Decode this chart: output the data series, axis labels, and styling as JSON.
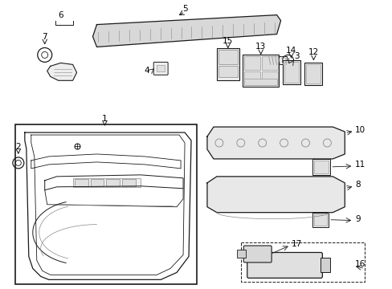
{
  "background_color": "#ffffff",
  "figsize": [
    4.89,
    3.6
  ],
  "dpi": 100,
  "line_color": "#1a1a1a",
  "gray": "#888888",
  "light_gray": "#cccccc"
}
